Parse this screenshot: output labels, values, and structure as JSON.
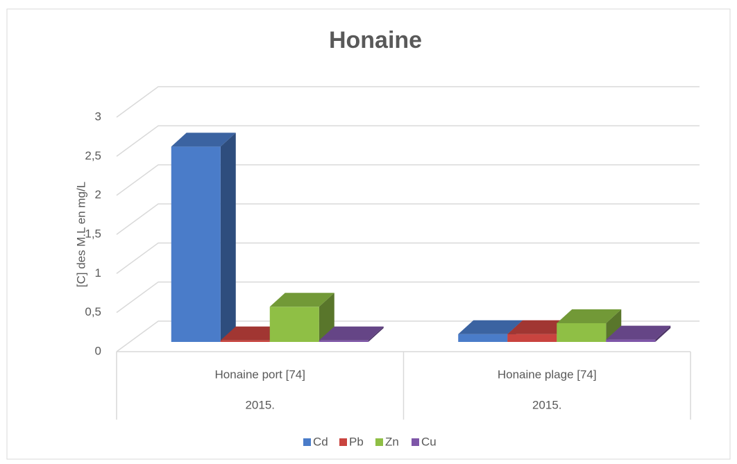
{
  "chart_data": {
    "type": "bar3d",
    "title": "Honaine",
    "y_label": "[C] des M.L en mg/L",
    "categories": [
      "Honaine port [74]",
      "Honaine plage [74]"
    ],
    "category_groups": [
      "2015.",
      "2015."
    ],
    "series": [
      {
        "name": "Cd",
        "color": "#4a7cc9",
        "values": [
          2.5,
          0.1
        ]
      },
      {
        "name": "Pb",
        "color": "#c9443f",
        "values": [
          0.02,
          0.1
        ]
      },
      {
        "name": "Zn",
        "color": "#8fbf45",
        "values": [
          0.45,
          0.24
        ]
      },
      {
        "name": "Cu",
        "color": "#7e56a8",
        "values": [
          0.02,
          0.03
        ]
      }
    ],
    "ylim": [
      0,
      3
    ],
    "yticks": [
      0,
      {
        "value": 0.5,
        "label": "0,5"
      },
      1,
      {
        "value": 1.5,
        "label": "1,5"
      },
      2,
      {
        "value": 2.5,
        "label": "2,5"
      },
      3
    ],
    "grid": true,
    "legend": "bottom"
  }
}
